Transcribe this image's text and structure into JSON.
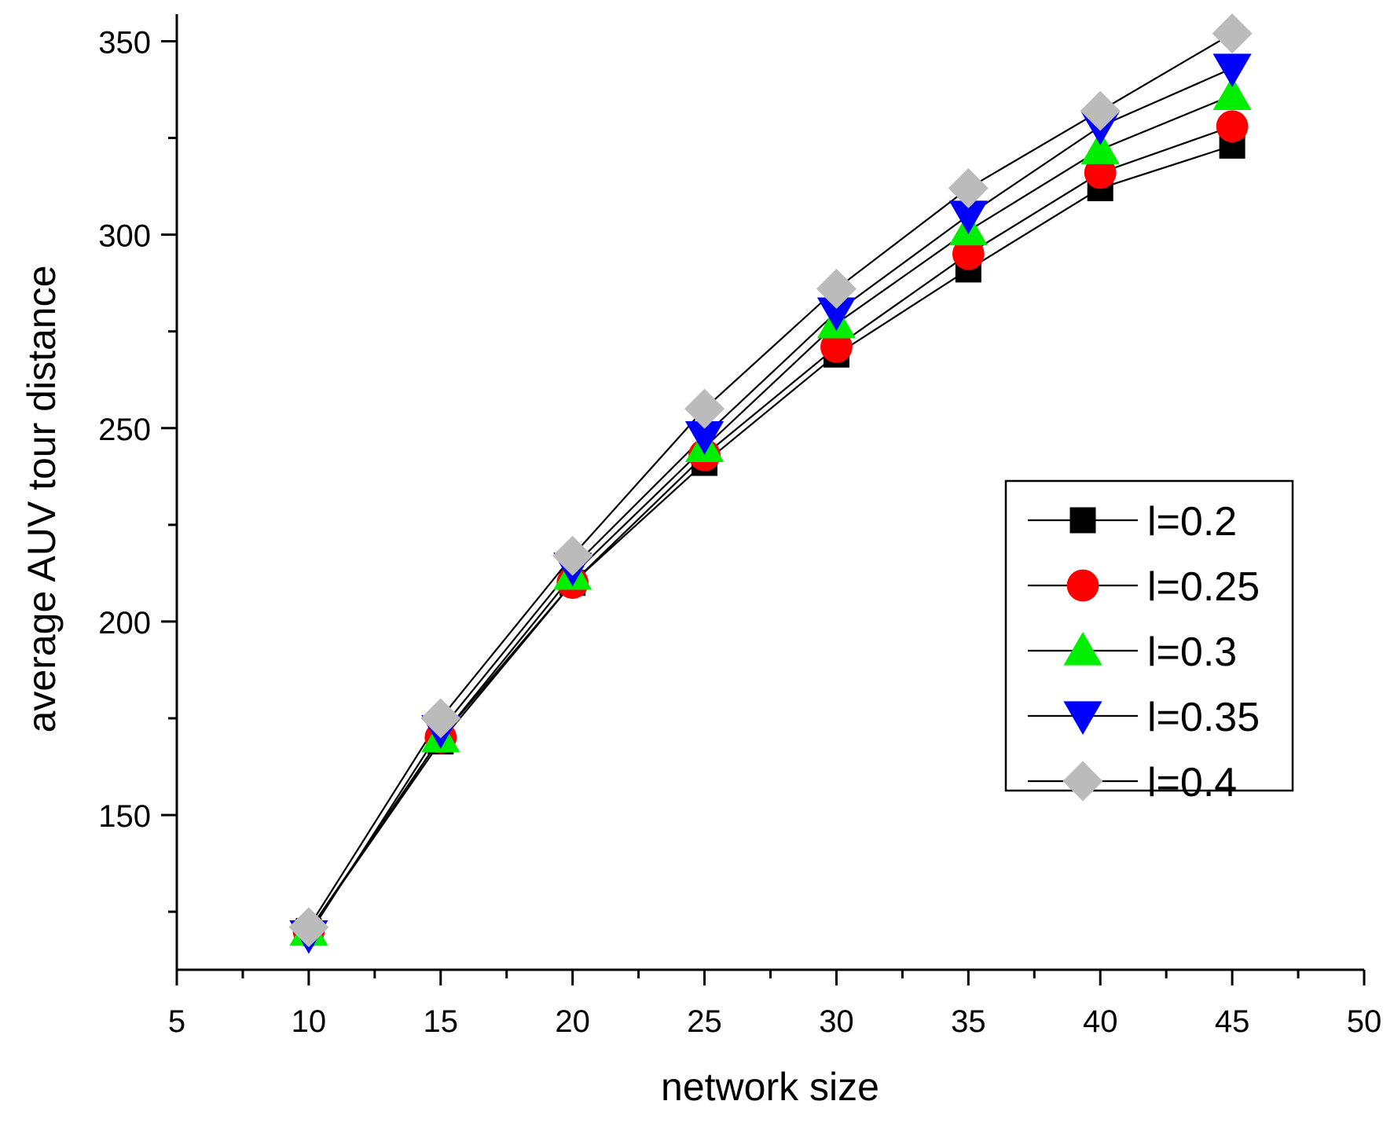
{
  "chart_data": {
    "type": "line",
    "title": "",
    "xlabel": "network size",
    "ylabel": "average AUV tour distance",
    "xlim": [
      5,
      50
    ],
    "ylim": [
      110,
      357
    ],
    "xticks": [
      5,
      10,
      15,
      20,
      25,
      30,
      35,
      40,
      45,
      50
    ],
    "yticks": [
      150,
      200,
      250,
      300,
      350
    ],
    "x": [
      10,
      15,
      20,
      25,
      30,
      35,
      40,
      45
    ],
    "legend_position": "center-right",
    "series": [
      {
        "name": "l=0.2",
        "marker": "square",
        "color": "#000000",
        "values": [
          120,
          169,
          210,
          241,
          269,
          291,
          312,
          323
        ]
      },
      {
        "name": "l=0.25",
        "marker": "circle",
        "color": "#ff0000",
        "values": [
          120,
          170,
          210,
          243,
          271,
          295,
          316,
          328
        ]
      },
      {
        "name": "l=0.3",
        "marker": "triangle-up",
        "color": "#00ee00",
        "values": [
          120,
          170,
          212,
          245,
          277,
          301,
          322,
          336
        ]
      },
      {
        "name": "l=0.35",
        "marker": "triangle-down",
        "color": "#0000ff",
        "values": [
          119,
          172,
          214,
          248,
          280,
          305,
          328,
          343
        ]
      },
      {
        "name": "l=0.4",
        "marker": "diamond",
        "color": "#bbbbbb",
        "values": [
          121,
          175,
          217,
          255,
          286,
          312,
          332,
          352
        ]
      }
    ]
  }
}
